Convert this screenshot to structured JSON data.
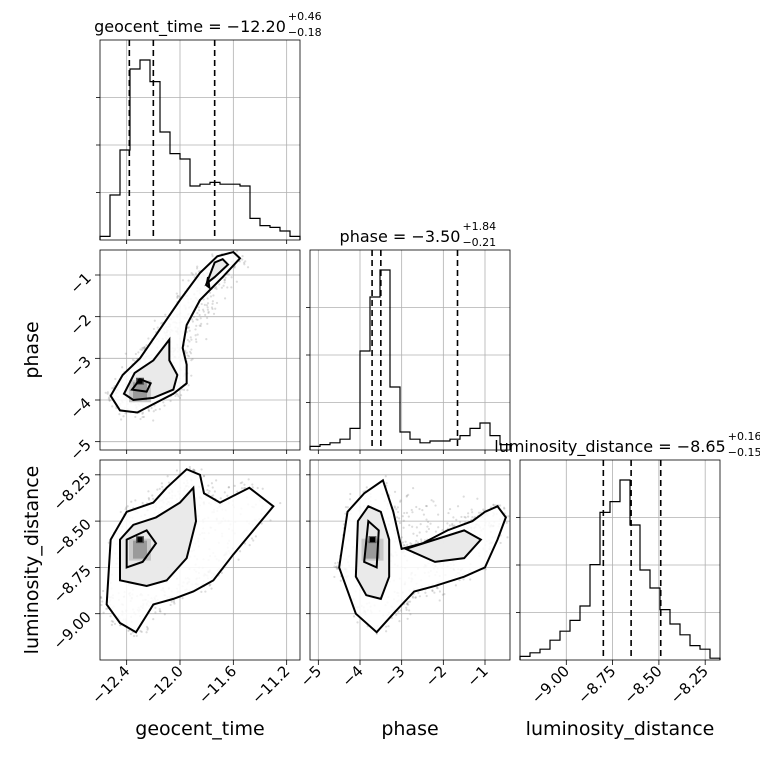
{
  "chart_data": {
    "type": "corner",
    "parameters": [
      {
        "name": "geocent_time",
        "range": [
          -12.6,
          -11.1
        ],
        "ticks": [
          -12.4,
          -12.0,
          -11.6,
          -11.2
        ],
        "tick_labels": [
          "−12.4",
          "−12.0",
          "−11.6",
          "−11.2"
        ]
      },
      {
        "name": "phase",
        "range": [
          -5.2,
          -0.4
        ],
        "ticks": [
          -5,
          -4,
          -3,
          -2,
          -1
        ],
        "tick_labels": [
          "−5",
          "−4",
          "−3",
          "−2",
          "−1"
        ]
      },
      {
        "name": "luminosity_distance",
        "range": [
          -9.25,
          -8.17
        ],
        "ticks": [
          -9.0,
          -8.75,
          -8.5,
          -8.25
        ],
        "tick_labels": [
          "−9.00",
          "−8.75",
          "−8.50",
          "−8.25"
        ]
      }
    ],
    "titles": [
      {
        "param": "geocent_time",
        "label": "geocent_time = −12.20",
        "plus": "+0.46",
        "minus": "−0.18"
      },
      {
        "param": "phase",
        "label": "phase = −3.50",
        "plus": "+1.84",
        "minus": "−0.21"
      },
      {
        "param": "luminosity_distance",
        "label": "luminosity_distance = −8.65",
        "plus": "+0.16",
        "minus": "−0.15"
      }
    ],
    "histograms": {
      "geocent_time": {
        "edges_start": -12.6,
        "bin_width": 0.075,
        "counts": [
          0.02,
          0.25,
          0.5,
          0.95,
          1.0,
          0.88,
          0.6,
          0.48,
          0.45,
          0.3,
          0.31,
          0.32,
          0.31,
          0.31,
          0.3,
          0.12,
          0.08,
          0.07,
          0.05,
          0.02
        ],
        "quantiles": [
          -12.38,
          -12.2,
          -11.74
        ]
      },
      "phase": {
        "edges_start": -5.2,
        "bin_width": 0.24,
        "counts": [
          0.02,
          0.03,
          0.04,
          0.06,
          0.12,
          0.55,
          0.85,
          1.0,
          0.35,
          0.1,
          0.06,
          0.04,
          0.05,
          0.05,
          0.06,
          0.08,
          0.12,
          0.15,
          0.08,
          0.03
        ],
        "quantiles": [
          -3.71,
          -3.5,
          -1.66
        ]
      },
      "luminosity_distance": {
        "edges_start": -9.25,
        "bin_width": 0.054,
        "counts": [
          0.02,
          0.04,
          0.06,
          0.11,
          0.16,
          0.22,
          0.3,
          0.53,
          0.82,
          0.88,
          1.0,
          0.75,
          0.5,
          0.4,
          0.28,
          0.2,
          0.14,
          0.08,
          0.06,
          0.01
        ],
        "quantiles": [
          -8.8,
          -8.65,
          -8.49
        ]
      }
    },
    "pairs": [
      {
        "x": "geocent_time",
        "y": "phase",
        "contours": [
          [
            [
              -12.52,
              -3.9
            ],
            [
              -12.43,
              -3.4
            ],
            [
              -12.3,
              -3.0
            ],
            [
              -12.15,
              -2.3
            ],
            [
              -12.0,
              -1.6
            ],
            [
              -11.85,
              -0.95
            ],
            [
              -11.72,
              -0.55
            ],
            [
              -11.6,
              -0.45
            ],
            [
              -11.55,
              -0.6
            ],
            [
              -11.68,
              -1.05
            ],
            [
              -11.85,
              -1.6
            ],
            [
              -11.95,
              -2.2
            ],
            [
              -11.98,
              -2.75
            ],
            [
              -11.95,
              -3.15
            ],
            [
              -11.95,
              -3.6
            ],
            [
              -12.05,
              -3.85
            ],
            [
              -12.2,
              -4.1
            ],
            [
              -12.32,
              -4.3
            ],
            [
              -12.45,
              -4.25
            ],
            [
              -12.52,
              -3.9
            ]
          ],
          [
            [
              -12.42,
              -3.85
            ],
            [
              -12.34,
              -3.35
            ],
            [
              -12.2,
              -3.05
            ],
            [
              -12.08,
              -2.55
            ],
            [
              -12.08,
              -3.05
            ],
            [
              -12.02,
              -3.4
            ],
            [
              -12.05,
              -3.75
            ],
            [
              -12.2,
              -3.95
            ],
            [
              -12.35,
              -4.0
            ],
            [
              -12.42,
              -3.85
            ]
          ],
          [
            [
              -12.36,
              -3.75
            ],
            [
              -12.3,
              -3.5
            ],
            [
              -12.22,
              -3.6
            ],
            [
              -12.25,
              -3.8
            ],
            [
              -12.36,
              -3.75
            ]
          ],
          [
            [
              -11.8,
              -1.2
            ],
            [
              -11.74,
              -0.7
            ],
            [
              -11.68,
              -0.62
            ],
            [
              -11.64,
              -0.75
            ],
            [
              -11.74,
              -1.05
            ],
            [
              -11.8,
              -1.2
            ]
          ],
          [
            [
              -11.8,
              -1.25
            ],
            [
              -11.79,
              -1.05
            ],
            [
              -11.78,
              -1.3
            ],
            [
              -11.8,
              -1.25
            ]
          ]
        ],
        "peak": [
          -12.3,
          -3.55
        ]
      },
      {
        "x": "geocent_time",
        "y": "luminosity_distance",
        "contours": [
          [
            [
              -12.55,
              -8.95
            ],
            [
              -12.52,
              -8.6
            ],
            [
              -12.4,
              -8.45
            ],
            [
              -12.2,
              -8.4
            ],
            [
              -12.1,
              -8.32
            ],
            [
              -11.95,
              -8.22
            ],
            [
              -11.85,
              -8.25
            ],
            [
              -11.82,
              -8.35
            ],
            [
              -11.7,
              -8.4
            ],
            [
              -11.48,
              -8.32
            ],
            [
              -11.3,
              -8.42
            ],
            [
              -11.45,
              -8.55
            ],
            [
              -11.6,
              -8.68
            ],
            [
              -11.75,
              -8.82
            ],
            [
              -11.9,
              -8.88
            ],
            [
              -12.05,
              -8.92
            ],
            [
              -12.2,
              -8.95
            ],
            [
              -12.33,
              -9.1
            ],
            [
              -12.45,
              -9.05
            ],
            [
              -12.55,
              -8.95
            ]
          ],
          [
            [
              -12.45,
              -8.82
            ],
            [
              -12.45,
              -8.6
            ],
            [
              -12.35,
              -8.52
            ],
            [
              -12.18,
              -8.48
            ],
            [
              -12.0,
              -8.4
            ],
            [
              -11.9,
              -8.32
            ],
            [
              -11.88,
              -8.5
            ],
            [
              -11.95,
              -8.7
            ],
            [
              -12.1,
              -8.82
            ],
            [
              -12.25,
              -8.85
            ],
            [
              -12.45,
              -8.82
            ]
          ],
          [
            [
              -12.4,
              -8.75
            ],
            [
              -12.4,
              -8.6
            ],
            [
              -12.25,
              -8.55
            ],
            [
              -12.18,
              -8.62
            ],
            [
              -12.28,
              -8.72
            ],
            [
              -12.4,
              -8.75
            ]
          ]
        ],
        "peak": [
          -12.3,
          -8.6
        ]
      },
      {
        "x": "phase",
        "y": "luminosity_distance",
        "contours": [
          [
            [
              -4.5,
              -8.75
            ],
            [
              -4.3,
              -8.45
            ],
            [
              -3.9,
              -8.35
            ],
            [
              -3.45,
              -8.28
            ],
            [
              -3.2,
              -8.45
            ],
            [
              -3.0,
              -8.65
            ],
            [
              -2.5,
              -8.62
            ],
            [
              -1.9,
              -8.55
            ],
            [
              -1.3,
              -8.5
            ],
            [
              -1.0,
              -8.45
            ],
            [
              -0.7,
              -8.42
            ],
            [
              -0.5,
              -8.48
            ],
            [
              -0.7,
              -8.6
            ],
            [
              -1.0,
              -8.75
            ],
            [
              -1.5,
              -8.8
            ],
            [
              -2.2,
              -8.85
            ],
            [
              -2.7,
              -8.88
            ],
            [
              -3.2,
              -9.0
            ],
            [
              -3.6,
              -9.1
            ],
            [
              -4.1,
              -9.0
            ],
            [
              -4.5,
              -8.75
            ]
          ],
          [
            [
              -4.1,
              -8.8
            ],
            [
              -4.05,
              -8.5
            ],
            [
              -3.8,
              -8.42
            ],
            [
              -3.5,
              -8.45
            ],
            [
              -3.3,
              -8.6
            ],
            [
              -3.3,
              -8.8
            ],
            [
              -3.5,
              -8.92
            ],
            [
              -3.85,
              -8.9
            ],
            [
              -4.1,
              -8.8
            ]
          ],
          [
            [
              -3.9,
              -8.72
            ],
            [
              -3.8,
              -8.5
            ],
            [
              -3.55,
              -8.55
            ],
            [
              -3.6,
              -8.75
            ],
            [
              -3.9,
              -8.72
            ]
          ],
          [
            [
              -2.9,
              -8.65
            ],
            [
              -2.2,
              -8.6
            ],
            [
              -1.5,
              -8.55
            ],
            [
              -1.1,
              -8.6
            ],
            [
              -1.5,
              -8.7
            ],
            [
              -2.2,
              -8.72
            ],
            [
              -2.9,
              -8.65
            ]
          ]
        ],
        "peak": [
          -3.7,
          -8.6
        ]
      }
    ]
  }
}
